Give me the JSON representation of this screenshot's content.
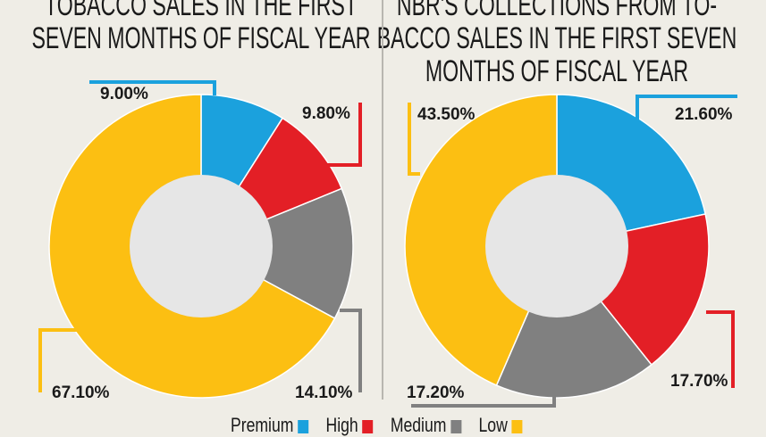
{
  "chart_data": [
    {
      "type": "pie",
      "donut": true,
      "title_lines": [
        "TOBACCO SALES IN THE FIRST",
        "SEVEN MONTHS OF FISCAL YEAR"
      ],
      "categories": [
        "Premium",
        "High",
        "Medium",
        "Low"
      ],
      "values": [
        9.0,
        9.8,
        14.1,
        67.1
      ],
      "labels": [
        "9.00%",
        "9.80%",
        "14.10%",
        "67.10%"
      ]
    },
    {
      "type": "pie",
      "donut": true,
      "title_lines": [
        "NBR'S COLLECTIONS FROM TO-",
        "BACCO SALES IN THE FIRST SEVEN",
        "MONTHS OF FISCAL YEAR"
      ],
      "categories": [
        "Premium",
        "High",
        "Medium",
        "Low"
      ],
      "values": [
        21.6,
        17.7,
        17.2,
        43.5
      ],
      "labels": [
        "21.60%",
        "17.70%",
        "17.20%",
        "43.50%"
      ]
    }
  ],
  "legend": [
    {
      "label": "Premium",
      "color": "#1ba1dd"
    },
    {
      "label": "High",
      "color": "#e31f26"
    },
    {
      "label": "Medium",
      "color": "#808080"
    },
    {
      "label": "Low",
      "color": "#fcbf12"
    }
  ],
  "hole_color": "#e6e6e6"
}
